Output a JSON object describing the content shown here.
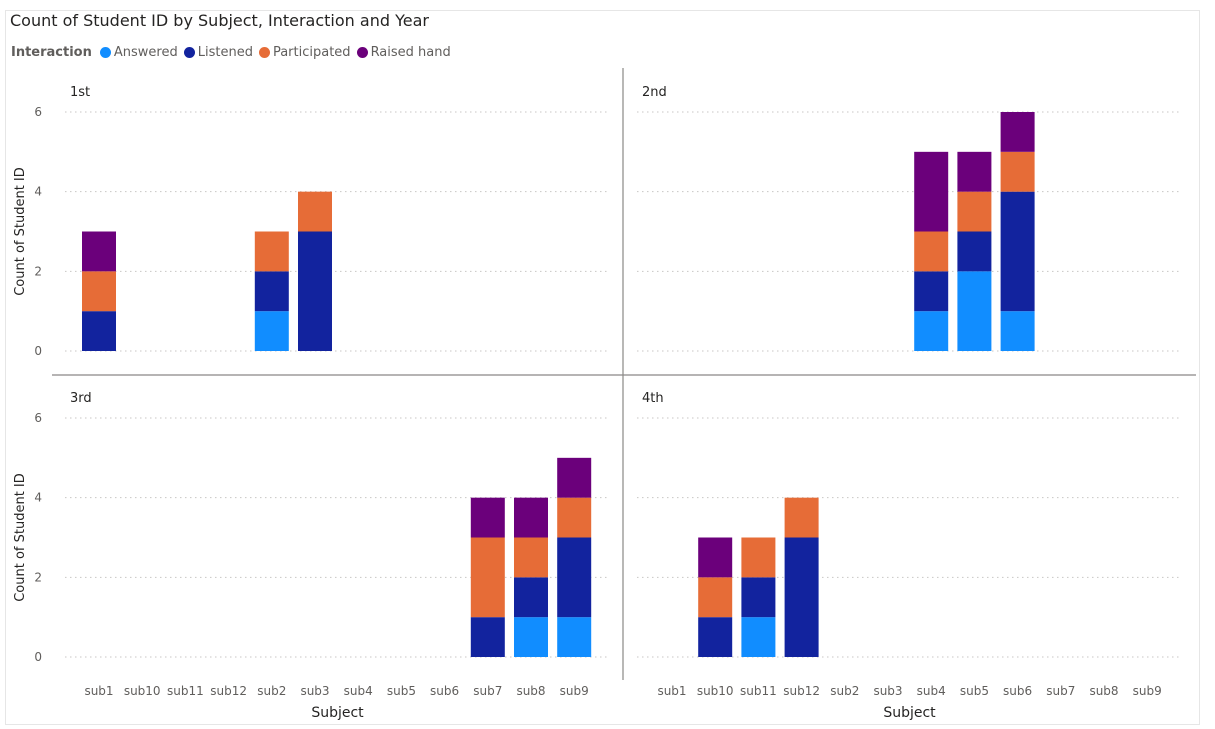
{
  "title": "Count of Student ID by Subject, Interaction and Year",
  "legend": {
    "title": "Interaction",
    "items": [
      {
        "label": "Answered",
        "color": "#118dff"
      },
      {
        "label": "Listened",
        "color": "#12239e"
      },
      {
        "label": "Participated",
        "color": "#e66c37"
      },
      {
        "label": "Raised hand",
        "color": "#6b007b"
      }
    ]
  },
  "chart_data": {
    "type": "bar",
    "stacked": true,
    "ylabel": "Count of Student ID",
    "xlabel": "Subject",
    "ylim": [
      0,
      6
    ],
    "yticks": [
      0,
      2,
      4,
      6
    ],
    "grid": true,
    "legend_position": "top-left",
    "categories": [
      "sub1",
      "sub10",
      "sub11",
      "sub12",
      "sub2",
      "sub3",
      "sub4",
      "sub5",
      "sub6",
      "sub7",
      "sub8",
      "sub9"
    ],
    "panels": [
      {
        "name": "1st",
        "series": [
          {
            "name": "Answered",
            "values": [
              0,
              0,
              0,
              0,
              1,
              0,
              0,
              0,
              0,
              0,
              0,
              0
            ]
          },
          {
            "name": "Listened",
            "values": [
              1,
              0,
              0,
              0,
              1,
              3,
              0,
              0,
              0,
              0,
              0,
              0
            ]
          },
          {
            "name": "Participated",
            "values": [
              1,
              0,
              0,
              0,
              1,
              1,
              0,
              0,
              0,
              0,
              0,
              0
            ]
          },
          {
            "name": "Raised hand",
            "values": [
              1,
              0,
              0,
              0,
              0,
              0,
              0,
              0,
              0,
              0,
              0,
              0
            ]
          }
        ]
      },
      {
        "name": "2nd",
        "series": [
          {
            "name": "Answered",
            "values": [
              0,
              0,
              0,
              0,
              0,
              0,
              1,
              2,
              1,
              0,
              0,
              0
            ]
          },
          {
            "name": "Listened",
            "values": [
              0,
              0,
              0,
              0,
              0,
              0,
              1,
              1,
              3,
              0,
              0,
              0
            ]
          },
          {
            "name": "Participated",
            "values": [
              0,
              0,
              0,
              0,
              0,
              0,
              1,
              1,
              1,
              0,
              0,
              0
            ]
          },
          {
            "name": "Raised hand",
            "values": [
              0,
              0,
              0,
              0,
              0,
              0,
              2,
              1,
              1,
              0,
              0,
              0
            ]
          }
        ]
      },
      {
        "name": "3rd",
        "series": [
          {
            "name": "Answered",
            "values": [
              0,
              0,
              0,
              0,
              0,
              0,
              0,
              0,
              0,
              0,
              1,
              1
            ]
          },
          {
            "name": "Listened",
            "values": [
              0,
              0,
              0,
              0,
              0,
              0,
              0,
              0,
              0,
              1,
              1,
              2
            ]
          },
          {
            "name": "Participated",
            "values": [
              0,
              0,
              0,
              0,
              0,
              0,
              0,
              0,
              0,
              2,
              1,
              1
            ]
          },
          {
            "name": "Raised hand",
            "values": [
              0,
              0,
              0,
              0,
              0,
              0,
              0,
              0,
              0,
              1,
              1,
              1
            ]
          }
        ]
      },
      {
        "name": "4th",
        "series": [
          {
            "name": "Answered",
            "values": [
              0,
              0,
              1,
              0,
              0,
              0,
              0,
              0,
              0,
              0,
              0,
              0
            ]
          },
          {
            "name": "Listened",
            "values": [
              0,
              1,
              1,
              3,
              0,
              0,
              0,
              0,
              0,
              0,
              0,
              0
            ]
          },
          {
            "name": "Participated",
            "values": [
              0,
              1,
              1,
              1,
              0,
              0,
              0,
              0,
              0,
              0,
              0,
              0
            ]
          },
          {
            "name": "Raised hand",
            "values": [
              0,
              1,
              0,
              0,
              0,
              0,
              0,
              0,
              0,
              0,
              0,
              0
            ]
          }
        ]
      }
    ]
  }
}
